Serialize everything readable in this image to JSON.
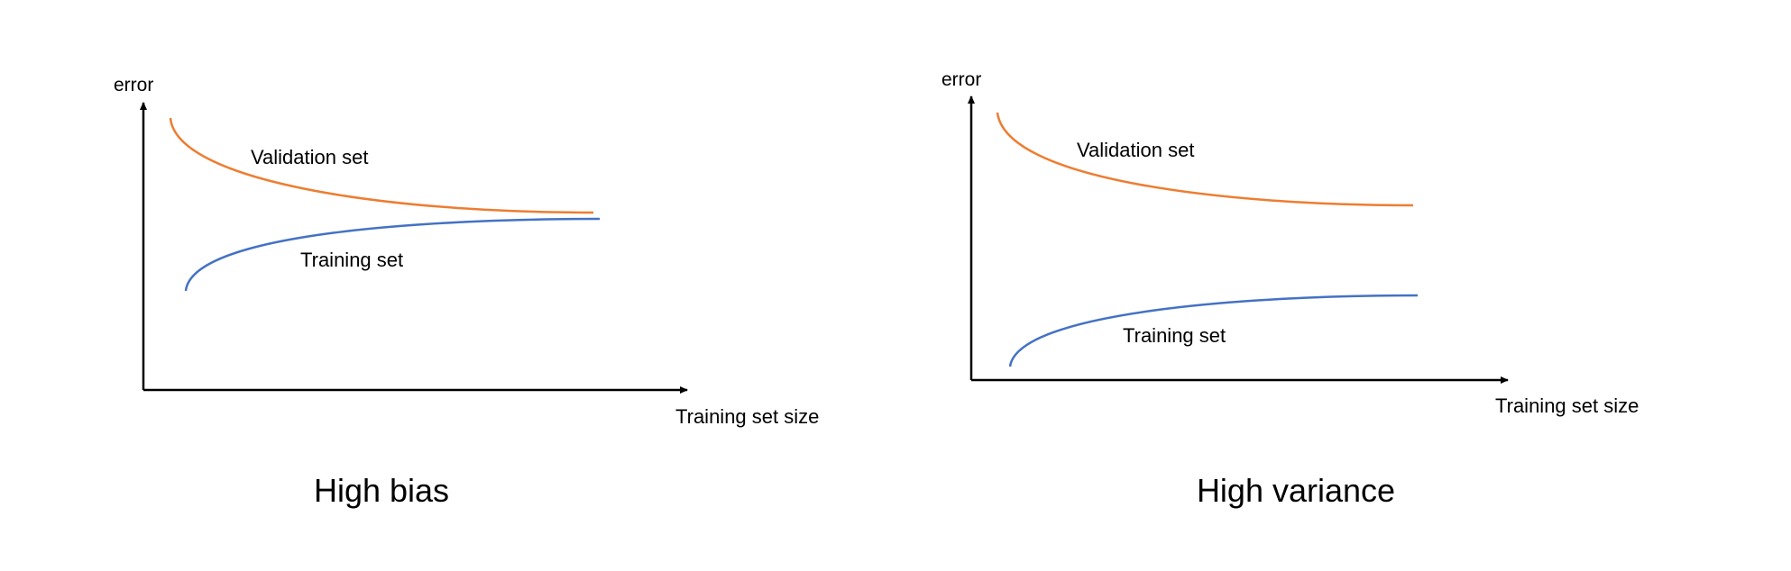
{
  "colors": {
    "validation": "#ED7D31",
    "training": "#4472C4",
    "axis": "#000000"
  },
  "panels": [
    {
      "key": "left",
      "y_label": "error",
      "x_label": "Training set size",
      "validation_label": "Validation set",
      "training_label": "Training set",
      "caption": "High bias"
    },
    {
      "key": "right",
      "y_label": "error",
      "x_label": "Training set size",
      "validation_label": "Validation set",
      "training_label": "Training set",
      "caption": "High variance"
    }
  ]
}
